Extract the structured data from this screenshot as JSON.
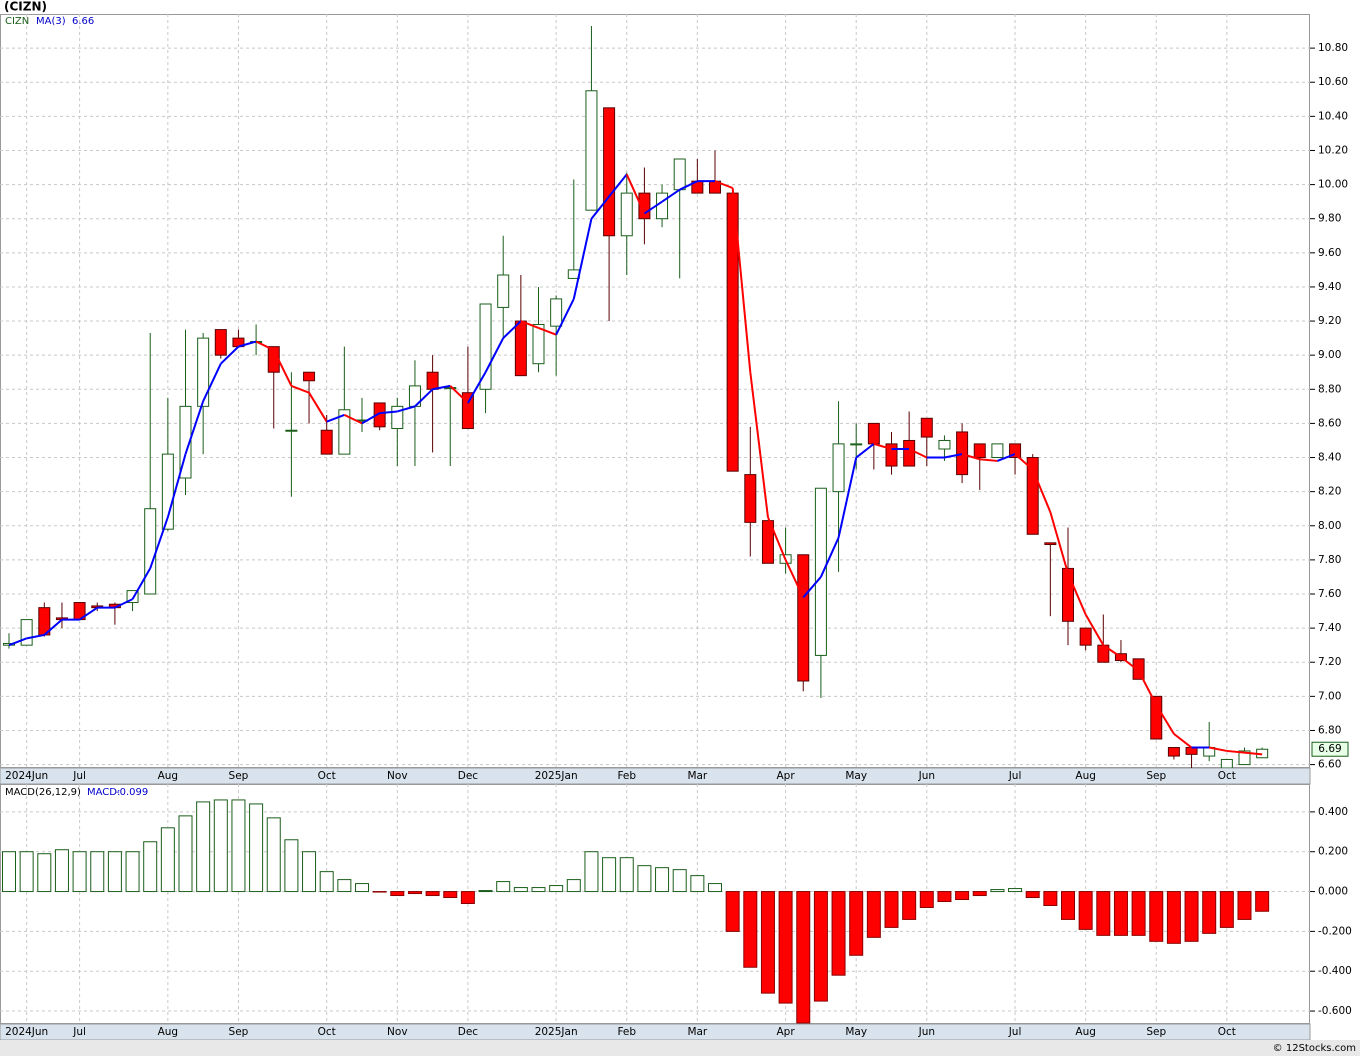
{
  "chart_data": [
    {
      "type": "candlestick",
      "title": "(CIZN)",
      "symbol": "CIZN",
      "categories": [
        null,
        "2024Jun",
        null,
        null,
        "Jul",
        null,
        null,
        null,
        null,
        "Aug",
        null,
        null,
        null,
        "Sep",
        null,
        null,
        null,
        null,
        "Oct",
        null,
        null,
        null,
        "Nov",
        null,
        null,
        null,
        "Dec",
        null,
        null,
        null,
        null,
        "2025Jan",
        null,
        null,
        null,
        "Feb",
        null,
        null,
        null,
        "Mar",
        null,
        null,
        null,
        null,
        "Apr",
        null,
        null,
        null,
        "May",
        null,
        null,
        null,
        "Jun",
        null,
        null,
        null,
        null,
        "Jul",
        null,
        null,
        null,
        "Aug",
        null,
        null,
        null,
        "Sep",
        null,
        null,
        null,
        "Oct",
        null,
        null
      ],
      "open": [
        7.3,
        7.3,
        7.52,
        7.46,
        7.55,
        7.53,
        7.54,
        7.55,
        7.6,
        7.98,
        8.28,
        8.7,
        9.15,
        9.1,
        9.08,
        9.05,
        8.56,
        8.9,
        8.56,
        8.42,
        8.62,
        8.72,
        8.57,
        8.7,
        8.9,
        8.81,
        8.78,
        8.8,
        9.28,
        9.2,
        8.95,
        9.17,
        9.45,
        9.85,
        10.45,
        9.7,
        9.95,
        9.8,
        9.97,
        10.02,
        10.02,
        9.95,
        8.3,
        8.03,
        7.78,
        7.83,
        7.24,
        8.2,
        8.48,
        8.6,
        8.48,
        8.5,
        8.63,
        8.45,
        8.55,
        8.48,
        8.4,
        8.48,
        8.4,
        7.9,
        7.75,
        7.4,
        7.3,
        7.25,
        7.22,
        7.0,
        6.7,
        6.7,
        6.65,
        6.58,
        6.6,
        6.64
      ],
      "high": [
        7.37,
        7.45,
        7.55,
        7.55,
        7.55,
        7.55,
        7.55,
        7.62,
        9.13,
        8.75,
        9.15,
        9.13,
        9.15,
        9.15,
        9.18,
        9.05,
        8.9,
        8.9,
        8.65,
        9.05,
        8.75,
        8.72,
        8.75,
        8.97,
        9.0,
        8.81,
        9.05,
        9.3,
        9.7,
        9.47,
        9.4,
        9.35,
        10.03,
        10.93,
        10.45,
        10.07,
        10.1,
        10.0,
        10.15,
        10.15,
        10.2,
        9.95,
        8.58,
        8.03,
        7.99,
        7.83,
        8.22,
        8.73,
        8.6,
        8.6,
        8.55,
        8.67,
        8.63,
        8.53,
        8.6,
        8.48,
        8.48,
        8.48,
        8.42,
        7.9,
        7.99,
        7.4,
        7.48,
        7.33,
        7.22,
        7.0,
        6.7,
        6.7,
        6.85,
        6.63,
        6.7,
        6.7
      ],
      "low": [
        7.28,
        7.3,
        7.35,
        7.4,
        7.45,
        7.5,
        7.42,
        7.5,
        7.6,
        7.97,
        8.18,
        8.42,
        8.98,
        9.05,
        9.0,
        8.57,
        8.17,
        8.6,
        8.42,
        8.42,
        8.55,
        8.56,
        8.35,
        8.35,
        8.43,
        8.35,
        8.57,
        8.66,
        9.1,
        8.88,
        8.9,
        8.88,
        9.45,
        9.85,
        9.2,
        9.47,
        9.65,
        9.75,
        9.45,
        9.95,
        9.95,
        8.32,
        7.82,
        7.78,
        7.72,
        7.03,
        6.99,
        7.73,
        8.33,
        8.33,
        8.3,
        8.35,
        8.35,
        8.38,
        8.25,
        8.21,
        8.4,
        8.3,
        7.95,
        7.47,
        7.3,
        7.27,
        7.2,
        7.2,
        7.1,
        6.75,
        6.63,
        6.58,
        6.62,
        6.58,
        6.6,
        6.64
      ],
      "close": [
        7.31,
        7.45,
        7.36,
        7.45,
        7.45,
        7.52,
        7.52,
        7.62,
        8.1,
        8.42,
        8.7,
        9.1,
        9.0,
        9.05,
        9.08,
        8.9,
        8.56,
        8.85,
        8.42,
        8.68,
        8.62,
        8.58,
        8.7,
        8.82,
        8.8,
        8.81,
        8.57,
        9.3,
        9.47,
        8.88,
        9.18,
        9.33,
        9.5,
        10.55,
        9.7,
        9.95,
        9.8,
        9.95,
        10.15,
        9.95,
        9.95,
        8.32,
        8.02,
        7.78,
        7.83,
        7.09,
        8.22,
        8.48,
        8.48,
        8.48,
        8.35,
        8.35,
        8.52,
        8.5,
        8.3,
        8.4,
        8.48,
        8.4,
        7.95,
        7.89,
        7.44,
        7.3,
        7.2,
        7.21,
        7.1,
        6.75,
        6.65,
        6.66,
        6.7,
        6.63,
        6.68,
        6.69
      ],
      "up_color": "#ffffff",
      "up_edge": "#1a5e1a",
      "down_color": "#ff0000",
      "down_edge": "#5a0000",
      "ma": {
        "name": "MA(3)",
        "rise_color": "#0000ff",
        "fall_color": "#ff0000",
        "values": [
          7.3,
          7.34,
          7.36,
          7.45,
          7.45,
          7.52,
          7.52,
          7.57,
          7.75,
          8.05,
          8.42,
          8.73,
          8.95,
          9.05,
          9.08,
          9.03,
          8.82,
          8.78,
          8.61,
          8.65,
          8.6,
          8.66,
          8.67,
          8.7,
          8.8,
          8.82,
          8.72,
          8.9,
          9.1,
          9.2,
          9.16,
          9.12,
          9.33,
          9.8,
          9.93,
          10.06,
          9.83,
          9.9,
          9.97,
          10.02,
          10.02,
          9.98,
          8.9,
          8.05,
          7.8,
          7.58,
          7.7,
          7.93,
          8.4,
          8.48,
          8.45,
          8.45,
          8.4,
          8.4,
          8.42,
          8.39,
          8.38,
          8.42,
          8.33,
          8.08,
          7.72,
          7.48,
          7.3,
          7.23,
          7.15,
          6.95,
          6.78,
          6.7,
          6.7,
          6.68,
          6.67,
          6.66
        ]
      },
      "ylim": [
        6.58,
        11.0
      ],
      "yticks": [
        {
          "value": 6.6,
          "label": "6.60"
        },
        {
          "value": 6.8,
          "label": "6.80"
        },
        {
          "value": 7.0,
          "label": "7.00"
        },
        {
          "value": 7.2,
          "label": "7.20"
        },
        {
          "value": 7.4,
          "label": "7.40"
        },
        {
          "value": 7.6,
          "label": "7.60"
        },
        {
          "value": 7.8,
          "label": "7.80"
        },
        {
          "value": 8.0,
          "label": "8.00"
        },
        {
          "value": 8.2,
          "label": "8.20"
        },
        {
          "value": 8.4,
          "label": "8.40"
        },
        {
          "value": 8.6,
          "label": "8.60"
        },
        {
          "value": 8.8,
          "label": "8.80"
        },
        {
          "value": 9.0,
          "label": "9.00"
        },
        {
          "value": 9.2,
          "label": "9.20"
        },
        {
          "value": 9.4,
          "label": "9.40"
        },
        {
          "value": 9.6,
          "label": "9.60"
        },
        {
          "value": 9.8,
          "label": "9.80"
        },
        {
          "value": 10.0,
          "label": "10.00"
        },
        {
          "value": 10.2,
          "label": "10.20"
        },
        {
          "value": 10.4,
          "label": "10.40"
        },
        {
          "value": 10.6,
          "label": "10.60"
        },
        {
          "value": 10.8,
          "label": "10.80"
        }
      ],
      "grid": true
    },
    {
      "type": "bar",
      "name": "MACD(26,12,9)",
      "value_name": "MACD:",
      "pos_color": "#ffffff",
      "pos_edge": "#1a5e1a",
      "neg_color": "#ff0000",
      "neg_edge": "#8a0000",
      "values": [
        0.2,
        0.2,
        0.19,
        0.21,
        0.2,
        0.2,
        0.2,
        0.2,
        0.25,
        0.32,
        0.38,
        0.45,
        0.46,
        0.46,
        0.44,
        0.37,
        0.26,
        0.2,
        0.1,
        0.06,
        0.04,
        -0.002,
        -0.02,
        -0.01,
        -0.02,
        -0.03,
        -0.06,
        0.005,
        0.05,
        0.02,
        0.02,
        0.03,
        0.06,
        0.2,
        0.17,
        0.17,
        0.13,
        0.12,
        0.11,
        0.08,
        0.04,
        -0.2,
        -0.38,
        -0.51,
        -0.56,
        -0.66,
        -0.55,
        -0.42,
        -0.32,
        -0.23,
        -0.18,
        -0.14,
        -0.08,
        -0.05,
        -0.04,
        -0.02,
        0.01,
        0.015,
        -0.03,
        -0.07,
        -0.14,
        -0.19,
        -0.22,
        -0.22,
        -0.22,
        -0.25,
        -0.26,
        -0.25,
        -0.21,
        -0.18,
        -0.14,
        -0.099
      ],
      "ylim": [
        -0.665,
        0.54
      ],
      "yticks": [
        {
          "value": -0.6,
          "label": "-0.600"
        },
        {
          "value": -0.4,
          "label": "-0.400"
        },
        {
          "value": -0.2,
          "label": "-0.200"
        },
        {
          "value": 0,
          "label": "0.000"
        },
        {
          "value": 0.2,
          "label": "0.200"
        },
        {
          "value": 0.4,
          "label": "0.400"
        }
      ],
      "grid": true
    }
  ],
  "footer": "© 12Stocks.com"
}
